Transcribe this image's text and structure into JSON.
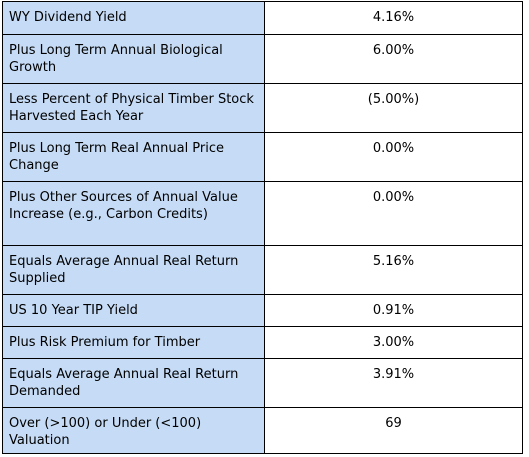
{
  "table": {
    "rows": [
      [
        "WY Dividend Yield",
        "4.16%"
      ],
      [
        "Plus Long Term Annual Biological Growth",
        "6.00%"
      ],
      [
        "Less Percent of Physical Timber Stock Harvested Each Year",
        "(5.00%)"
      ],
      [
        "Plus Long Term Real Annual Price Change",
        "0.00%"
      ],
      [
        "Plus Other Sources of Annual Value Increase (e.g., Carbon Credits)",
        "0.00%"
      ],
      [
        "Equals Average Annual Real Return Supplied",
        "5.16%"
      ],
      [
        "US 10 Year TIP Yield",
        "0.91%"
      ],
      [
        "Plus Risk Premium for Timber",
        "3.00%"
      ],
      [
        "Equals Average Annual Real Return Demanded",
        "3.91%"
      ],
      [
        "Over (>100) or Under (<100) Valuation",
        "69"
      ]
    ]
  }
}
